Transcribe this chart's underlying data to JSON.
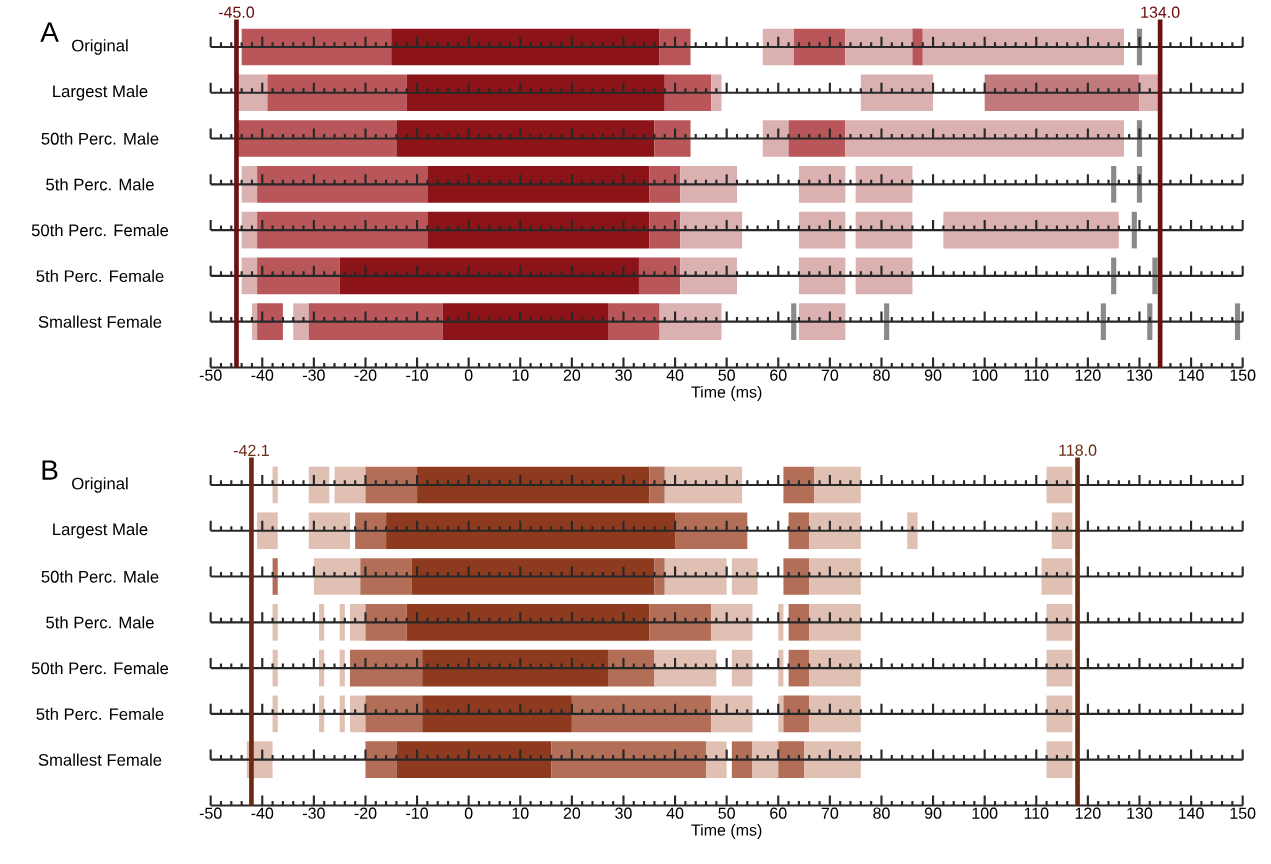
{
  "chart_data": [
    {
      "type": "bar",
      "orientation": "horizontal",
      "title": "A",
      "xlabel": "Time (ms)",
      "categories": [
        "Original",
        "Largest Male",
        "50th Perc. Male",
        "5th Perc. Male",
        "50th Perc. Female",
        "5th Perc. Female",
        "Smallest Female"
      ],
      "xlim": [
        -50,
        150
      ],
      "xticks": [
        -50,
        -40,
        -30,
        -20,
        -10,
        0,
        10,
        20,
        30,
        40,
        50,
        60,
        70,
        80,
        90,
        100,
        110,
        120,
        130,
        140,
        150
      ],
      "ref_lines": [
        {
          "axis": "x",
          "value": -45.0,
          "label": "-45.0",
          "color": "#6b1010"
        },
        {
          "axis": "x",
          "value": 134.0,
          "label": "134.0",
          "color": "#6b1010"
        }
      ],
      "series": [
        {
          "base": [
            -44,
            -45,
            -45,
            -44,
            -44,
            -44,
            -42
          ],
          "values": [
            29,
            6,
            31,
            3,
            3,
            3,
            1
          ],
          "colors": [
            "#b9565a",
            "#dbb0b1",
            "#b9565a",
            "#dbb0b1",
            "#dbb0b1",
            "#dbb0b1",
            "#dbb0b1"
          ]
        },
        {
          "base": [
            -15,
            -39,
            -14,
            -41,
            -41,
            -41,
            -41
          ],
          "values": [
            52,
            27,
            50,
            33,
            33,
            16,
            5
          ],
          "colors": [
            "#8c1418",
            "#b9565a",
            "#8c1418",
            "#b9565a",
            "#b9565a",
            "#b9565a",
            "#b9565a"
          ]
        },
        {
          "base": [
            37,
            -12,
            36,
            -8,
            -8,
            -25,
            -34
          ],
          "values": [
            6,
            50,
            7,
            43,
            43,
            58,
            3
          ],
          "colors": [
            "#b9565a",
            "#8c1418",
            "#b9565a",
            "#8c1418",
            "#8c1418",
            "#8c1418",
            "#dbb0b1"
          ]
        },
        {
          "base": [
            57,
            38,
            57,
            35,
            35,
            33,
            -31
          ],
          "values": [
            6,
            9,
            5,
            6,
            6,
            8,
            26
          ],
          "colors": [
            "#dbb0b1",
            "#b9565a",
            "#dbb0b1",
            "#b9565a",
            "#b9565a",
            "#b9565a",
            "#b9565a"
          ]
        },
        {
          "base": [
            63,
            47,
            62,
            41,
            41,
            41,
            -5
          ],
          "values": [
            10,
            2,
            11,
            11,
            12,
            11,
            32
          ],
          "colors": [
            "#b9565a",
            "#dbb0b1",
            "#b9565a",
            "#dbb0b1",
            "#dbb0b1",
            "#dbb0b1",
            "#8c1418"
          ]
        },
        {
          "base": [
            73,
            76,
            73,
            64,
            64,
            64,
            27
          ],
          "values": [
            13,
            14,
            54,
            9,
            9,
            9,
            10
          ],
          "colors": [
            "#dbb0b1",
            "#dbb0b1",
            "#dbb0b1",
            "#dbb0b1",
            "#dbb0b1",
            "#dbb0b1",
            "#b9565a"
          ]
        },
        {
          "base": [
            86,
            100,
            129.5,
            75,
            75,
            75,
            37
          ],
          "values": [
            2,
            30,
            1,
            11,
            11,
            11,
            12
          ],
          "colors": [
            "#b9565a",
            "#c07a7c",
            "#8a8a8a",
            "#dbb0b1",
            "#dbb0b1",
            "#dbb0b1",
            "#dbb0b1"
          ]
        },
        {
          "base": [
            88,
            130,
            null,
            124.5,
            92,
            124.5,
            62.5
          ],
          "values": [
            39,
            4,
            null,
            1,
            34,
            1,
            1
          ],
          "colors": [
            "#dbb0b1",
            "#dbb0b1",
            null,
            "#8a8a8a",
            "#dbb0b1",
            "#8a8a8a",
            "#8a8a8a"
          ]
        },
        {
          "base": [
            129.5,
            null,
            null,
            129.5,
            128.5,
            132.5,
            64
          ],
          "values": [
            1,
            null,
            null,
            1,
            1,
            1,
            9
          ],
          "colors": [
            "#8a8a8a",
            null,
            null,
            "#8a8a8a",
            "#8a8a8a",
            "#8a8a8a",
            "#dbb0b1"
          ]
        },
        {
          "base": [
            null,
            null,
            null,
            null,
            null,
            null,
            80.5
          ],
          "values": [
            null,
            null,
            null,
            null,
            null,
            null,
            1
          ],
          "color": "#8a8a8a"
        },
        {
          "base": [
            null,
            null,
            null,
            null,
            null,
            null,
            122.5
          ],
          "values": [
            null,
            null,
            null,
            null,
            null,
            null,
            1
          ],
          "color": "#8a8a8a"
        },
        {
          "base": [
            null,
            null,
            null,
            null,
            null,
            null,
            131.5
          ],
          "values": [
            null,
            null,
            null,
            null,
            null,
            null,
            1
          ],
          "color": "#8a8a8a"
        },
        {
          "base": [
            null,
            null,
            null,
            null,
            null,
            null,
            148.5
          ],
          "values": [
            null,
            null,
            null,
            null,
            null,
            null,
            1
          ],
          "color": "#8a8a8a"
        }
      ]
    },
    {
      "type": "bar",
      "orientation": "horizontal",
      "title": "B",
      "xlabel": "Time (ms)",
      "categories": [
        "Original",
        "Largest Male",
        "50th Perc. Male",
        "5th Perc. Male",
        "50th Perc. Female",
        "5th Perc. Female",
        "Smallest Female"
      ],
      "xlim": [
        -50,
        150
      ],
      "xticks": [
        -50,
        -40,
        -30,
        -20,
        -10,
        0,
        10,
        20,
        30,
        40,
        50,
        60,
        70,
        80,
        90,
        100,
        110,
        120,
        130,
        140,
        150
      ],
      "ref_lines": [
        {
          "axis": "x",
          "value": -42.1,
          "label": "-42.1",
          "color": "#6b2a14"
        },
        {
          "axis": "x",
          "value": 118.0,
          "label": "118.0",
          "color": "#6b2a14"
        }
      ],
      "series": [
        {
          "base": [
            -38,
            -41,
            -38,
            -38,
            -38,
            -38,
            -43
          ],
          "values": [
            1,
            4,
            1,
            1,
            1,
            1,
            5
          ],
          "colors": [
            "#e0c0b3",
            "#e0c0b3",
            "#b36e58",
            "#e0c0b3",
            "#e0c0b3",
            "#e0c0b3",
            "#e0c0b3"
          ]
        },
        {
          "base": [
            -31,
            -31,
            -30,
            -29,
            -29,
            -29,
            -20
          ],
          "values": [
            4,
            8,
            9,
            1,
            1,
            1,
            6
          ],
          "colors": [
            "#e0c0b3",
            "#e0c0b3",
            "#e0c0b3",
            "#e0c0b3",
            "#e0c0b3",
            "#e0c0b3",
            "#b36e58"
          ]
        },
        {
          "base": [
            -26,
            -22,
            -21,
            -25,
            -25,
            -25,
            -14
          ],
          "values": [
            6,
            6,
            10,
            1,
            1,
            1,
            30
          ],
          "colors": [
            "#e0c0b3",
            "#b36e58",
            "#b36e58",
            "#e0c0b3",
            "#e0c0b3",
            "#e0c0b3",
            "#8e3a1e"
          ]
        },
        {
          "base": [
            -20,
            -16,
            -11,
            -23,
            -23,
            -23,
            16
          ],
          "values": [
            10,
            56,
            47,
            3,
            14,
            3,
            30
          ],
          "colors": [
            "#b36e58",
            "#8e3a1e",
            "#8e3a1e",
            "#e0c0b3",
            "#b36e58",
            "#e0c0b3",
            "#b36e58"
          ]
        },
        {
          "base": [
            -10,
            40,
            36,
            -20,
            -9,
            -20,
            46
          ],
          "values": [
            45,
            14,
            2,
            8,
            36,
            11,
            4
          ],
          "colors": [
            "#8e3a1e",
            "#b36e58",
            "#b36e58",
            "#b36e58",
            "#8e3a1e",
            "#b36e58",
            "#e0c0b3"
          ]
        },
        {
          "base": [
            35,
            62,
            38,
            -12,
            27,
            -9,
            51
          ],
          "values": [
            3,
            4,
            12,
            47,
            9,
            29,
            4
          ],
          "colors": [
            "#b36e58",
            "#b36e58",
            "#e0c0b3",
            "#8e3a1e",
            "#b36e58",
            "#8e3a1e",
            "#b36e58"
          ]
        },
        {
          "base": [
            38,
            66,
            51,
            35,
            36,
            20,
            55
          ],
          "values": [
            15,
            10,
            5,
            12,
            12,
            27,
            5
          ],
          "colors": [
            "#e0c0b3",
            "#e0c0b3",
            "#e0c0b3",
            "#b36e58",
            "#e0c0b3",
            "#b36e58",
            "#e0c0b3"
          ]
        },
        {
          "base": [
            61,
            85,
            61,
            47,
            51,
            47,
            60
          ],
          "values": [
            6,
            2,
            5,
            8,
            4,
            8,
            5
          ],
          "colors": [
            "#b36e58",
            "#e0c0b3",
            "#b36e58",
            "#e0c0b3",
            "#e0c0b3",
            "#e0c0b3",
            "#b36e58"
          ]
        },
        {
          "base": [
            67,
            113,
            66,
            60,
            60,
            60,
            65
          ],
          "values": [
            9,
            4,
            10,
            1,
            1,
            1,
            11
          ],
          "color": "#e0c0b3"
        },
        {
          "base": [
            112,
            null,
            111,
            62,
            62,
            61,
            112
          ],
          "values": [
            5,
            null,
            6,
            4,
            4,
            5,
            5
          ],
          "colors": [
            "#e0c0b3",
            null,
            "#e0c0b3",
            "#b36e58",
            "#b36e58",
            "#b36e58",
            "#e0c0b3"
          ]
        },
        {
          "base": [
            null,
            null,
            null,
            66,
            66,
            66,
            null
          ],
          "values": [
            null,
            null,
            null,
            10,
            10,
            10,
            null
          ],
          "color": "#e0c0b3"
        },
        {
          "base": [
            null,
            null,
            null,
            112,
            112,
            112,
            null
          ],
          "values": [
            null,
            null,
            null,
            5,
            5,
            5,
            null
          ],
          "color": "#e0c0b3"
        }
      ]
    }
  ]
}
